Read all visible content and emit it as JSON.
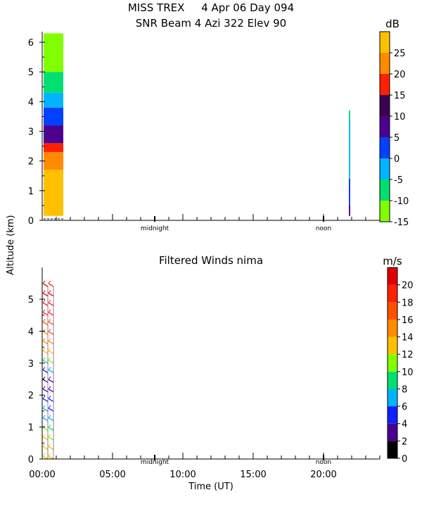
{
  "header": {
    "title_line1": "MISS TREX     4 Apr 06 Day 094",
    "title_line2": "SNR Beam 4 Azi 322 Elev 90"
  },
  "shared": {
    "ylabel": "Altitude (km)",
    "xlabel": "Time (UT)",
    "xtick_labels": [
      "00:00",
      "05:00",
      "10:00",
      "15:00",
      "20:00"
    ],
    "midnight_label": "midnight",
    "noon_label": "noon"
  },
  "chart_data": [
    {
      "type": "heatmap",
      "title": "SNR Beam 4 Azi 322 Elev 90",
      "ylabel": "Altitude (km)",
      "ylim": [
        0,
        6.3
      ],
      "yticks": [
        0,
        1,
        2,
        3,
        4,
        5,
        6
      ],
      "xlim_hours": [
        0,
        24
      ],
      "colorbar": {
        "unit": "dB",
        "range": [
          -15,
          30
        ],
        "ticks": [
          "25",
          "20",
          "15",
          "10",
          "5",
          "0",
          "-5",
          "-10",
          "-15"
        ],
        "bands": [
          {
            "min": -15,
            "max": -10,
            "color": "#80ff00"
          },
          {
            "min": -10,
            "max": -5,
            "color": "#00e070"
          },
          {
            "min": -5,
            "max": 0,
            "color": "#00b4ff"
          },
          {
            "min": 0,
            "max": 5,
            "color": "#0040ff"
          },
          {
            "min": 5,
            "max": 10,
            "color": "#4b0090"
          },
          {
            "min": 10,
            "max": 15,
            "color": "#3a0050"
          },
          {
            "min": 15,
            "max": 20,
            "color": "#ff2000"
          },
          {
            "min": 20,
            "max": 25,
            "color": "#ff8c00"
          },
          {
            "min": 25,
            "max": 30,
            "color": "#ffc000"
          }
        ]
      },
      "data_blocks": [
        {
          "t_start": 0.1,
          "t_end": 1.5,
          "layers": [
            {
              "alt_min": 0.15,
              "alt_max": 1.7,
              "color": "#ffc000"
            },
            {
              "alt_min": 1.7,
              "alt_max": 2.3,
              "color": "#ff8c00"
            },
            {
              "alt_min": 2.3,
              "alt_max": 2.6,
              "color": "#ff2000"
            },
            {
              "alt_min": 2.6,
              "alt_max": 3.2,
              "color": "#4b0090"
            },
            {
              "alt_min": 3.2,
              "alt_max": 3.8,
              "color": "#0040ff"
            },
            {
              "alt_min": 3.8,
              "alt_max": 4.3,
              "color": "#00b4ff"
            },
            {
              "alt_min": 4.3,
              "alt_max": 5.0,
              "color": "#00e070"
            },
            {
              "alt_min": 5.0,
              "alt_max": 6.3,
              "color": "#80ff00"
            }
          ]
        },
        {
          "t_start": 21.8,
          "t_end": 21.9,
          "layers": [
            {
              "alt_min": 0.15,
              "alt_max": 0.5,
              "color": "#4b0090"
            },
            {
              "alt_min": 0.5,
              "alt_max": 1.4,
              "color": "#0040ff"
            },
            {
              "alt_min": 1.4,
              "alt_max": 3.4,
              "color": "#00b4ff"
            },
            {
              "alt_min": 3.4,
              "alt_max": 3.7,
              "color": "#00e070"
            }
          ]
        }
      ]
    },
    {
      "type": "scatter",
      "title": "Filtered Winds nima",
      "ylabel": "Altitude (km)",
      "xlabel": "Time (UT)",
      "ylim": [
        0,
        5.8
      ],
      "yticks": [
        0,
        1,
        2,
        3,
        4,
        5
      ],
      "xlim_hours": [
        0,
        24
      ],
      "xticks_hours": [
        0,
        5,
        10,
        15,
        20
      ],
      "colorbar": {
        "unit": "m/s",
        "range": [
          0,
          22
        ],
        "ticks": [
          "20",
          "18",
          "16",
          "14",
          "12",
          "10",
          "8",
          "6",
          "4",
          "2",
          "0"
        ],
        "bands": [
          {
            "min": 0,
            "max": 2,
            "color": "#000000"
          },
          {
            "min": 2,
            "max": 4,
            "color": "#4b0090"
          },
          {
            "min": 4,
            "max": 6,
            "color": "#1020ff"
          },
          {
            "min": 6,
            "max": 8,
            "color": "#00b4ff"
          },
          {
            "min": 8,
            "max": 10,
            "color": "#00e070"
          },
          {
            "min": 10,
            "max": 12,
            "color": "#80ff00"
          },
          {
            "min": 12,
            "max": 14,
            "color": "#ffc000"
          },
          {
            "min": 14,
            "max": 16,
            "color": "#ff8c00"
          },
          {
            "min": 16,
            "max": 18,
            "color": "#ff5000"
          },
          {
            "min": 18,
            "max": 20,
            "color": "#ff2000"
          },
          {
            "min": 20,
            "max": 22,
            "color": "#e00000"
          }
        ]
      },
      "profiles": [
        {
          "t_hours": 0.4,
          "points": [
            {
              "alt": 0.0,
              "speed": 13
            },
            {
              "alt": 0.3,
              "speed": 13
            },
            {
              "alt": 0.6,
              "speed": 12
            },
            {
              "alt": 0.9,
              "speed": 10
            },
            {
              "alt": 1.2,
              "speed": 7
            },
            {
              "alt": 1.5,
              "speed": 6
            },
            {
              "alt": 1.8,
              "speed": 4
            },
            {
              "alt": 2.1,
              "speed": 3
            },
            {
              "alt": 2.4,
              "speed": 3
            },
            {
              "alt": 2.7,
              "speed": 5
            },
            {
              "alt": 3.0,
              "speed": 9
            },
            {
              "alt": 3.3,
              "speed": 12
            },
            {
              "alt": 3.6,
              "speed": 14
            },
            {
              "alt": 3.9,
              "speed": 15
            },
            {
              "alt": 4.2,
              "speed": 17
            },
            {
              "alt": 4.5,
              "speed": 18
            },
            {
              "alt": 4.8,
              "speed": 19
            },
            {
              "alt": 5.1,
              "speed": 20
            },
            {
              "alt": 5.4,
              "speed": 20
            }
          ]
        },
        {
          "t_hours": 0.8,
          "points": [
            {
              "alt": 0.0,
              "speed": 13
            },
            {
              "alt": 0.3,
              "speed": 12
            },
            {
              "alt": 0.6,
              "speed": 11
            },
            {
              "alt": 0.9,
              "speed": 9
            },
            {
              "alt": 1.2,
              "speed": 7
            },
            {
              "alt": 1.5,
              "speed": 5
            },
            {
              "alt": 1.8,
              "speed": 4
            },
            {
              "alt": 2.1,
              "speed": 2
            },
            {
              "alt": 2.4,
              "speed": 3
            },
            {
              "alt": 2.7,
              "speed": 6
            },
            {
              "alt": 3.0,
              "speed": 10
            },
            {
              "alt": 3.3,
              "speed": 12
            },
            {
              "alt": 3.6,
              "speed": 14
            },
            {
              "alt": 3.9,
              "speed": 16
            },
            {
              "alt": 4.2,
              "speed": 17
            },
            {
              "alt": 4.5,
              "speed": 18
            },
            {
              "alt": 4.8,
              "speed": 19
            },
            {
              "alt": 5.1,
              "speed": 20
            },
            {
              "alt": 5.4,
              "speed": 19
            }
          ]
        }
      ]
    }
  ]
}
